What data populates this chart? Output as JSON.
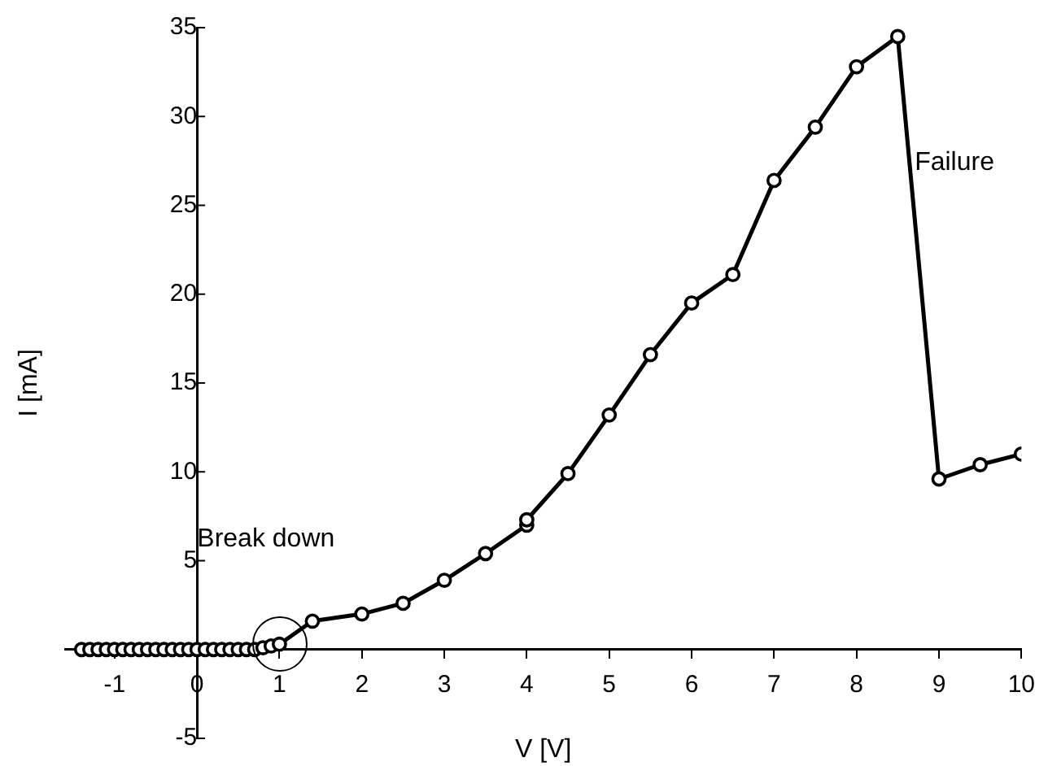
{
  "chart_data": {
    "type": "line",
    "xlabel": "V [V]",
    "ylabel": "I [mA]",
    "annotations": [
      "Break down",
      "Failure"
    ],
    "xlim": [
      -1.6,
      10
    ],
    "xticks": [
      -1,
      0,
      1,
      2,
      3,
      4,
      5,
      6,
      7,
      8,
      9,
      10
    ],
    "ylim": [
      -5,
      35
    ],
    "yticks": [
      -5,
      5,
      10,
      15,
      20,
      25,
      30,
      35
    ],
    "grid": false,
    "legend": false,
    "marker": "circle",
    "line_style": "solid",
    "series": [
      {
        "color": "#000000",
        "x": [
          -1.4,
          -1.3,
          -1.2,
          -1.1,
          -1.0,
          -0.9,
          -0.8,
          -0.7,
          -0.6,
          -0.5,
          -0.4,
          -0.3,
          -0.2,
          -0.1,
          0,
          0.1,
          0.2,
          0.3,
          0.4,
          0.5,
          0.6,
          0.7,
          0.8,
          0.9,
          1.0,
          1.4,
          2.0,
          2.5,
          3.0,
          3.5,
          4.0,
          4.0,
          4.5,
          5.0,
          5.5,
          6.0,
          6.5,
          7.0,
          7.5,
          8.0,
          8.5,
          9.0,
          9.5,
          10.0
        ],
        "values": [
          0,
          0,
          0,
          0,
          0,
          0,
          0,
          0,
          0,
          0,
          0,
          0,
          0,
          0,
          0,
          0,
          0,
          0,
          0,
          0,
          0,
          0,
          0.1,
          0.2,
          0.3,
          1.6,
          2.0,
          2.6,
          3.9,
          5.4,
          7.0,
          7.3,
          9.9,
          13.2,
          16.6,
          19.5,
          21.1,
          26.4,
          29.4,
          32.8,
          34.5,
          9.6,
          10.4,
          11.0
        ]
      }
    ]
  }
}
